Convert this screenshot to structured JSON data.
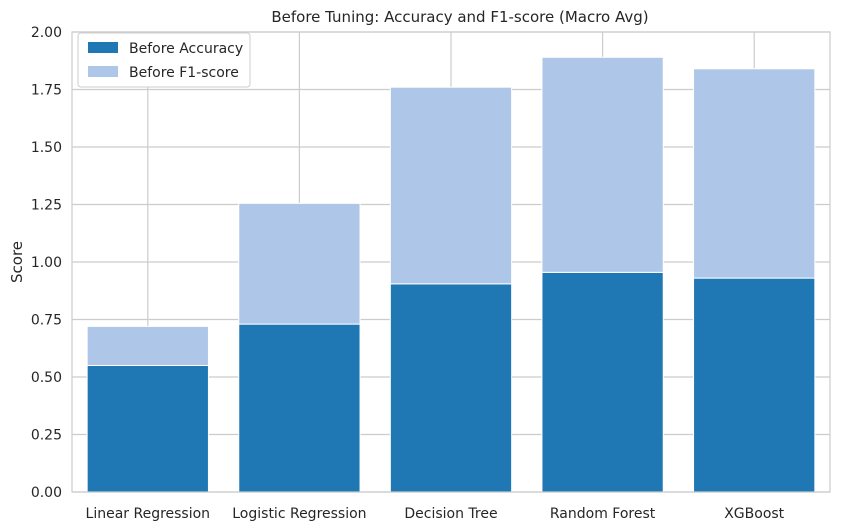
{
  "chart_data": {
    "type": "bar",
    "stacked": true,
    "title": "Before Tuning: Accuracy and F1-score (Macro Avg)",
    "xlabel": "",
    "ylabel": "Score",
    "ylim": [
      0,
      2.0
    ],
    "yticks": [
      "0.00",
      "0.25",
      "0.50",
      "0.75",
      "1.00",
      "1.25",
      "1.50",
      "1.75",
      "2.00"
    ],
    "grid": true,
    "legend_position": "top-left",
    "categories": [
      "Linear Regression",
      "Logistic Regression",
      "Decision Tree",
      "Random Forest",
      "XGBoost"
    ],
    "series": [
      {
        "name": "Before Accuracy",
        "color": "#1f77b4",
        "values": [
          0.55,
          0.73,
          0.905,
          0.955,
          0.93
        ]
      },
      {
        "name": "Before F1-score",
        "color": "#aec7e8",
        "values": [
          0.17,
          0.525,
          0.855,
          0.935,
          0.91
        ]
      }
    ]
  }
}
